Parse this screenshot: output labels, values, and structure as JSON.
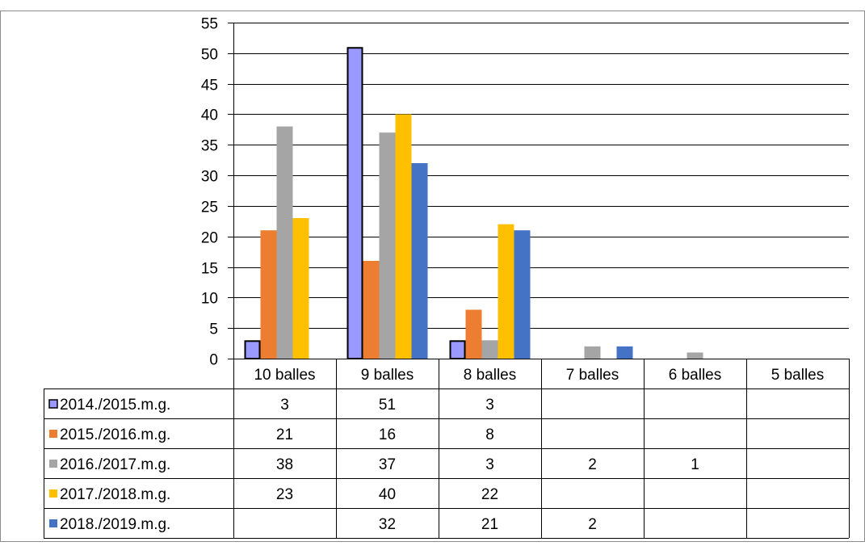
{
  "chart_data": {
    "type": "bar",
    "categories": [
      "10 balles",
      "9 balles",
      "8 balles",
      "7 balles",
      "6 balles",
      "5 balles"
    ],
    "ylim": [
      0,
      55
    ],
    "y_ticks": [
      0,
      5,
      10,
      15,
      20,
      25,
      30,
      35,
      40,
      45,
      50,
      55
    ],
    "grid": true,
    "legend_placement": "data-table-left",
    "series": [
      {
        "name": "2014./2015.m.g.",
        "color": "#9999ff",
        "outlined": true,
        "values": [
          3,
          51,
          3,
          null,
          null,
          null
        ]
      },
      {
        "name": "2015./2016.m.g.",
        "color": "#ed7d31",
        "outlined": false,
        "values": [
          21,
          16,
          8,
          null,
          null,
          null
        ]
      },
      {
        "name": "2016./2017.m.g.",
        "color": "#a5a5a5",
        "outlined": false,
        "values": [
          38,
          37,
          3,
          2,
          1,
          null
        ]
      },
      {
        "name": "2017./2018.m.g.",
        "color": "#ffc000",
        "outlined": false,
        "values": [
          23,
          40,
          22,
          null,
          null,
          null
        ]
      },
      {
        "name": "2018./2019.m.g.",
        "color": "#4472c4",
        "outlined": false,
        "values": [
          null,
          32,
          21,
          2,
          null,
          null
        ]
      }
    ]
  }
}
